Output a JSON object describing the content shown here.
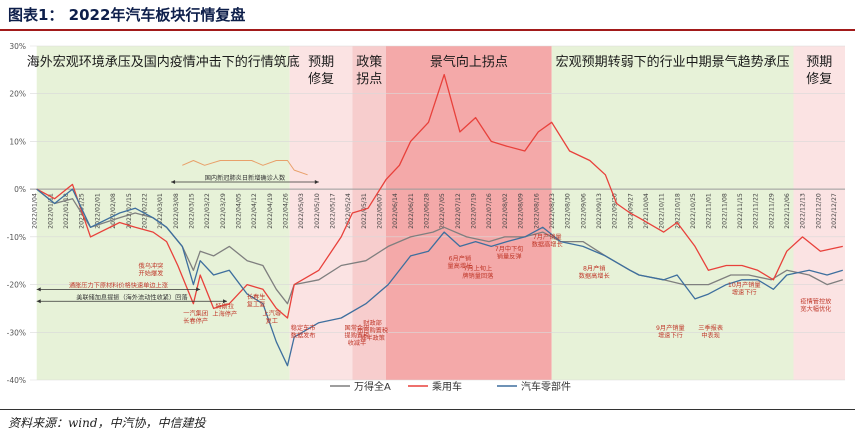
{
  "header": {
    "title": "图表1：  2022年汽车板块行情复盘"
  },
  "footer": {
    "source": "资料来源：wind，中汽协，中信建投"
  },
  "chart_data": {
    "type": "line",
    "ylim": [
      -40,
      30
    ],
    "yticks": [
      "30%",
      "20%",
      "10%",
      "0%",
      "-10%",
      "-20%",
      "-30%",
      "-40%"
    ],
    "ytick_values": [
      30,
      20,
      10,
      0,
      -10,
      -20,
      -30,
      -40
    ],
    "xtick_labels": [
      "2022/01/04",
      "2022/01/11",
      "2022/01/18",
      "2022/01/25",
      "2022/02/01",
      "2022/02/08",
      "2022/02/15",
      "2022/02/22",
      "2022/03/01",
      "2022/03/08",
      "2022/03/15",
      "2022/03/22",
      "2022/03/29",
      "2022/04/05",
      "2022/04/12",
      "2022/04/19",
      "2022/04/26",
      "2022/05/03",
      "2022/05/10",
      "2022/05/17",
      "2022/05/24",
      "2022/05/31",
      "2022/06/07",
      "2022/06/14",
      "2022/06/21",
      "2022/06/28",
      "2022/07/05",
      "2022/07/12",
      "2022/07/19",
      "2022/07/26",
      "2022/08/02",
      "2022/08/09",
      "2022/08/16",
      "2022/08/23",
      "2022/08/30",
      "2022/09/06",
      "2022/09/13",
      "2022/09/20",
      "2022/09/27",
      "2022/10/04",
      "2022/10/11",
      "2022/10/18",
      "2022/10/25",
      "2022/11/01",
      "2022/11/08",
      "2022/11/15",
      "2022/11/22",
      "2022/11/29",
      "2022/12/06",
      "2022/12/13",
      "2022/12/20",
      "2022/12/27"
    ],
    "x_start": "2022-01-01",
    "x_end": "2022-12-31",
    "phases": [
      {
        "label": "海外宏观环境承压及国内疫情冲击下的行情筑底",
        "start": "2022-01-04",
        "end": "2022-04-27",
        "color": "#e7f2d8"
      },
      {
        "label": "预期\n修复",
        "start": "2022-04-27",
        "end": "2022-05-25",
        "color": "#fbe3e3"
      },
      {
        "label": "政策\n拐点",
        "start": "2022-05-25",
        "end": "2022-06-09",
        "color": "#f7cdcd"
      },
      {
        "label": "景气向上拐点",
        "start": "2022-06-09",
        "end": "2022-08-22",
        "color": "#f4a9a9"
      },
      {
        "label": "宏观预期转弱下的行业中期景气趋势承压",
        "start": "2022-08-22",
        "end": "2022-12-08",
        "color": "#e7f2d8"
      },
      {
        "label": "预期\n修复",
        "start": "2022-12-08",
        "end": "2022-12-31",
        "color": "#fbe3e3"
      }
    ],
    "series": [
      {
        "name": "万得全A",
        "color": "#7f7f7f",
        "points": [
          [
            "2022-01-04",
            0
          ],
          [
            "2022-01-12",
            -3
          ],
          [
            "2022-01-20",
            -2
          ],
          [
            "2022-01-28",
            -8
          ],
          [
            "2022-02-10",
            -6
          ],
          [
            "2022-02-17",
            -5
          ],
          [
            "2022-02-25",
            -6
          ],
          [
            "2022-03-03",
            -8
          ],
          [
            "2022-03-10",
            -12
          ],
          [
            "2022-03-15",
            -17
          ],
          [
            "2022-03-18",
            -13
          ],
          [
            "2022-03-24",
            -14
          ],
          [
            "2022-03-31",
            -12
          ],
          [
            "2022-04-08",
            -15
          ],
          [
            "2022-04-15",
            -16
          ],
          [
            "2022-04-21",
            -21
          ],
          [
            "2022-04-26",
            -24
          ],
          [
            "2022-04-29",
            -20
          ],
          [
            "2022-05-10",
            -19
          ],
          [
            "2022-05-20",
            -16
          ],
          [
            "2022-05-31",
            -15
          ],
          [
            "2022-06-10",
            -12
          ],
          [
            "2022-06-20",
            -10
          ],
          [
            "2022-06-30",
            -9
          ],
          [
            "2022-07-05",
            -8
          ],
          [
            "2022-07-15",
            -10
          ],
          [
            "2022-07-25",
            -11
          ],
          [
            "2022-08-01",
            -10
          ],
          [
            "2022-08-10",
            -10
          ],
          [
            "2022-08-18",
            -9
          ],
          [
            "2022-08-26",
            -11
          ],
          [
            "2022-09-05",
            -11
          ],
          [
            "2022-09-15",
            -14
          ],
          [
            "2022-09-26",
            -17
          ],
          [
            "2022-09-30",
            -18
          ],
          [
            "2022-10-11",
            -19
          ],
          [
            "2022-10-20",
            -20
          ],
          [
            "2022-10-31",
            -20
          ],
          [
            "2022-11-10",
            -18
          ],
          [
            "2022-11-18",
            -18
          ],
          [
            "2022-11-28",
            -19
          ],
          [
            "2022-12-05",
            -17
          ],
          [
            "2022-12-15",
            -18
          ],
          [
            "2022-12-23",
            -20
          ],
          [
            "2022-12-30",
            -19
          ]
        ]
      },
      {
        "name": "乘用车",
        "color": "#e8413b",
        "points": [
          [
            "2022-01-04",
            0
          ],
          [
            "2022-01-12",
            -2
          ],
          [
            "2022-01-20",
            1
          ],
          [
            "2022-01-28",
            -10
          ],
          [
            "2022-02-10",
            -7
          ],
          [
            "2022-02-17",
            -8
          ],
          [
            "2022-02-25",
            -9
          ],
          [
            "2022-03-03",
            -11
          ],
          [
            "2022-03-08",
            -16
          ],
          [
            "2022-03-15",
            -24
          ],
          [
            "2022-03-18",
            -18
          ],
          [
            "2022-03-24",
            -25
          ],
          [
            "2022-03-31",
            -24
          ],
          [
            "2022-04-08",
            -20
          ],
          [
            "2022-04-15",
            -21
          ],
          [
            "2022-04-21",
            -25
          ],
          [
            "2022-04-26",
            -27
          ],
          [
            "2022-04-29",
            -20
          ],
          [
            "2022-05-10",
            -17
          ],
          [
            "2022-05-20",
            -10
          ],
          [
            "2022-05-25",
            -5
          ],
          [
            "2022-06-01",
            -4
          ],
          [
            "2022-06-09",
            2
          ],
          [
            "2022-06-15",
            5
          ],
          [
            "2022-06-20",
            10
          ],
          [
            "2022-06-28",
            14
          ],
          [
            "2022-07-05",
            24
          ],
          [
            "2022-07-12",
            12
          ],
          [
            "2022-07-19",
            15
          ],
          [
            "2022-07-26",
            10
          ],
          [
            "2022-08-02",
            9
          ],
          [
            "2022-08-10",
            8
          ],
          [
            "2022-08-16",
            12
          ],
          [
            "2022-08-22",
            14
          ],
          [
            "2022-08-30",
            8
          ],
          [
            "2022-09-08",
            6
          ],
          [
            "2022-09-15",
            3
          ],
          [
            "2022-09-20",
            -3
          ],
          [
            "2022-09-26",
            -5
          ],
          [
            "2022-09-30",
            -6
          ],
          [
            "2022-10-11",
            -9
          ],
          [
            "2022-10-17",
            -7
          ],
          [
            "2022-10-25",
            -12
          ],
          [
            "2022-10-31",
            -17
          ],
          [
            "2022-11-08",
            -16
          ],
          [
            "2022-11-15",
            -16
          ],
          [
            "2022-11-22",
            -17
          ],
          [
            "2022-11-29",
            -19
          ],
          [
            "2022-12-05",
            -13
          ],
          [
            "2022-12-12",
            -10
          ],
          [
            "2022-12-20",
            -13
          ],
          [
            "2022-12-30",
            -12
          ]
        ]
      },
      {
        "name": "汽车零部件",
        "color": "#3e6f9e",
        "points": [
          [
            "2022-01-04",
            0
          ],
          [
            "2022-01-12",
            -3
          ],
          [
            "2022-01-20",
            0
          ],
          [
            "2022-01-28",
            -8
          ],
          [
            "2022-02-10",
            -5
          ],
          [
            "2022-02-17",
            -4
          ],
          [
            "2022-02-25",
            -6
          ],
          [
            "2022-03-03",
            -8
          ],
          [
            "2022-03-10",
            -12
          ],
          [
            "2022-03-15",
            -20
          ],
          [
            "2022-03-18",
            -15
          ],
          [
            "2022-03-24",
            -18
          ],
          [
            "2022-03-31",
            -17
          ],
          [
            "2022-04-08",
            -22
          ],
          [
            "2022-04-15",
            -24
          ],
          [
            "2022-04-21",
            -32
          ],
          [
            "2022-04-26",
            -37
          ],
          [
            "2022-04-29",
            -31
          ],
          [
            "2022-05-10",
            -28
          ],
          [
            "2022-05-20",
            -27
          ],
          [
            "2022-05-31",
            -24
          ],
          [
            "2022-06-10",
            -20
          ],
          [
            "2022-06-20",
            -14
          ],
          [
            "2022-06-28",
            -13
          ],
          [
            "2022-07-05",
            -9
          ],
          [
            "2022-07-12",
            -12
          ],
          [
            "2022-07-19",
            -11
          ],
          [
            "2022-07-26",
            -12
          ],
          [
            "2022-08-02",
            -11
          ],
          [
            "2022-08-10",
            -10
          ],
          [
            "2022-08-18",
            -8
          ],
          [
            "2022-08-26",
            -11
          ],
          [
            "2022-09-05",
            -12
          ],
          [
            "2022-09-15",
            -14
          ],
          [
            "2022-09-26",
            -17
          ],
          [
            "2022-09-30",
            -18
          ],
          [
            "2022-10-11",
            -19
          ],
          [
            "2022-10-17",
            -18
          ],
          [
            "2022-10-25",
            -23
          ],
          [
            "2022-10-31",
            -22
          ],
          [
            "2022-11-08",
            -20
          ],
          [
            "2022-11-15",
            -19
          ],
          [
            "2022-11-22",
            -19
          ],
          [
            "2022-11-29",
            -21
          ],
          [
            "2022-12-05",
            -18
          ],
          [
            "2022-12-15",
            -17
          ],
          [
            "2022-12-23",
            -18
          ],
          [
            "2022-12-30",
            -17
          ]
        ]
      },
      {
        "name": "国内新冠肺炎日新增确诊人数",
        "color": "#e8a06a",
        "points": [
          [
            "2022-03-10",
            5
          ],
          [
            "2022-03-15",
            6
          ],
          [
            "2022-03-20",
            5
          ],
          [
            "2022-03-27",
            6
          ],
          [
            "2022-04-03",
            6
          ],
          [
            "2022-04-10",
            6
          ],
          [
            "2022-04-15",
            5
          ],
          [
            "2022-04-21",
            6
          ],
          [
            "2022-04-26",
            6
          ],
          [
            "2022-04-29",
            4
          ],
          [
            "2022-05-05",
            3
          ]
        ]
      }
    ],
    "range_annotations": [
      {
        "text": "国内新冠肺炎日新增确诊人数",
        "start": "2022-03-05",
        "end": "2022-05-10",
        "y": 1.5
      },
      {
        "text": "通胀压力下原材料价格快速单边上涨",
        "start": "2022-01-04",
        "end": "2022-03-18",
        "y": -21
      },
      {
        "text": "美联储加息提振（海外流动性收紧）回落",
        "start": "2022-01-04",
        "end": "2022-03-30",
        "y": -23.5
      }
    ],
    "annotations": [
      {
        "text": "俄乌冲突\n开始爆发",
        "date": "2022-02-24",
        "y": -16.5
      },
      {
        "text": "一汽集团\n长春停产",
        "date": "2022-03-16",
        "y": -26.5
      },
      {
        "text": "特斯拉\n上海停产",
        "date": "2022-03-29",
        "y": -25
      },
      {
        "text": "长春生\n复工复",
        "date": "2022-04-12",
        "y": -23
      },
      {
        "text": "上汽等\n复工",
        "date": "2022-04-19",
        "y": -26.5
      },
      {
        "text": "稳定车市\n数据发布",
        "date": "2022-05-03",
        "y": -29.5
      },
      {
        "text": "国常会研\n提购置税\n收减半",
        "date": "2022-05-27",
        "y": -29.5
      },
      {
        "text": "财政部\n出台购置税\n减半政策",
        "date": "2022-06-03",
        "y": -28.5
      },
      {
        "text": "6月产销\n量高增长",
        "date": "2022-07-12",
        "y": -15
      },
      {
        "text": "7月上旬上\n牌销量回落",
        "date": "2022-07-20",
        "y": -17
      },
      {
        "text": "7月中下旬\n销量反弹",
        "date": "2022-08-03",
        "y": -13
      },
      {
        "text": "7月产销量\n数据高增长",
        "date": "2022-08-20",
        "y": -10.5
      },
      {
        "text": "8月产销\n数据高增长",
        "date": "2022-09-10",
        "y": -17
      },
      {
        "text": "9月产销量\n增速下行",
        "date": "2022-10-14",
        "y": -29.5
      },
      {
        "text": "三季报表\n中表现",
        "date": "2022-11-01",
        "y": -29.5
      },
      {
        "text": "10月产销量\n增速下行",
        "date": "2022-11-16",
        "y": -20.5
      },
      {
        "text": "疫情管控放\n宽大幅优化",
        "date": "2022-12-18",
        "y": -24
      }
    ]
  },
  "legend": {
    "items": [
      "万得全A",
      "乘用车",
      "汽车零部件"
    ]
  }
}
